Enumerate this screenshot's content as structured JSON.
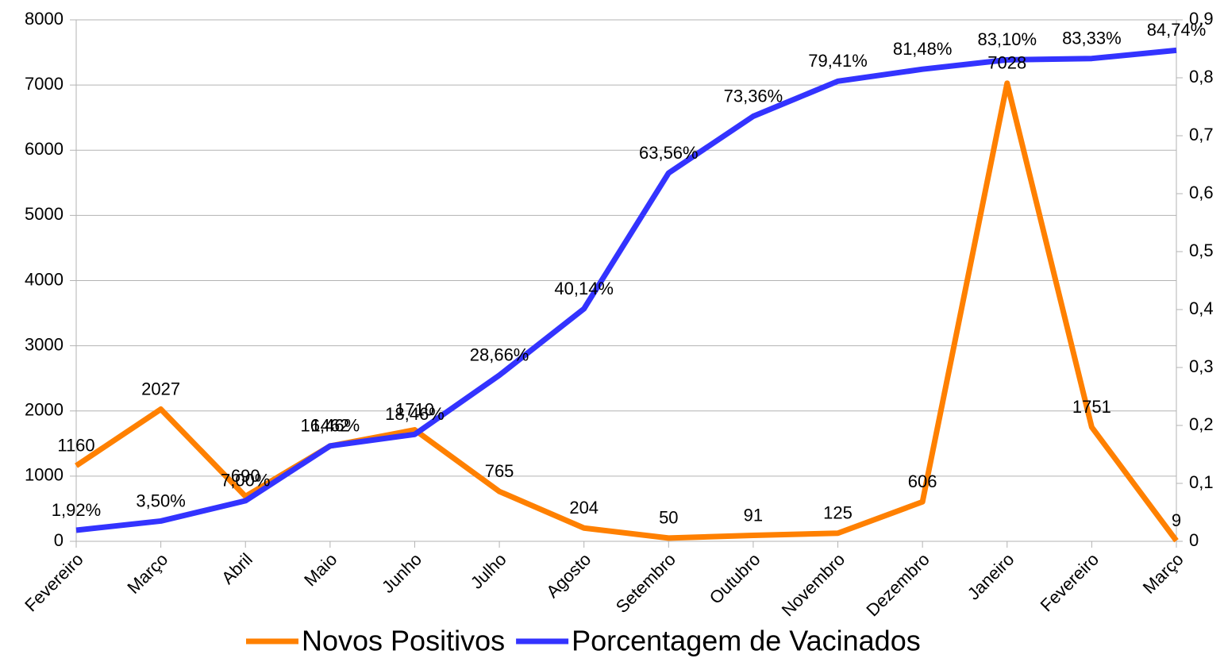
{
  "chart_data": {
    "type": "line",
    "categories": [
      "Fevereiro",
      "Março",
      "Abril",
      "Maio",
      "Junho",
      "Julho",
      "Agosto",
      "Setembro",
      "Outubro",
      "Novembro",
      "Dezembro",
      "Janeiro",
      "Fevereiro",
      "Março"
    ],
    "series": [
      {
        "name": "Novos Positivos",
        "color": "#ff8000",
        "values": [
          1160,
          2027,
          690,
          1462,
          1710,
          765,
          204,
          50,
          91,
          125,
          606,
          7028,
          1751,
          9
        ]
      },
      {
        "name": "Porcentagem de Vacinados",
        "color": "#3333ff",
        "axis": "y2",
        "values": [
          0.0192,
          0.035,
          0.07,
          0.1646,
          0.1846,
          0.2866,
          0.4014,
          0.6356,
          0.7336,
          0.7941,
          0.8148,
          0.831,
          0.8333,
          0.8474
        ],
        "value_labels": [
          "1,92%",
          "3,50%",
          "7,00%",
          "16,46%",
          "18,46%",
          "28,66%",
          "40,14%",
          "63,56%",
          "73,36%",
          "79,41%",
          "81,48%",
          "83,10%",
          "83,33%",
          "84,74%"
        ]
      }
    ],
    "ylim": [
      0,
      8000
    ],
    "yticks": [
      0,
      1000,
      2000,
      3000,
      4000,
      5000,
      6000,
      7000,
      8000
    ],
    "y2lim": [
      0,
      0.9
    ],
    "y2ticks": [
      0,
      {
        "value": 0.1,
        "label": "0,1"
      },
      {
        "value": 0.2,
        "label": "0,2"
      },
      {
        "value": 0.3,
        "label": "0,3"
      },
      {
        "value": 0.4,
        "label": "0,4"
      },
      {
        "value": 0.5,
        "label": "0,5"
      },
      {
        "value": 0.6,
        "label": "0,6"
      },
      {
        "value": 0.7,
        "label": "0,7"
      },
      {
        "value": 0.8,
        "label": "0,8"
      },
      {
        "value": 0.9,
        "label": "0,9"
      }
    ],
    "grid": true,
    "legend": "bottom"
  }
}
